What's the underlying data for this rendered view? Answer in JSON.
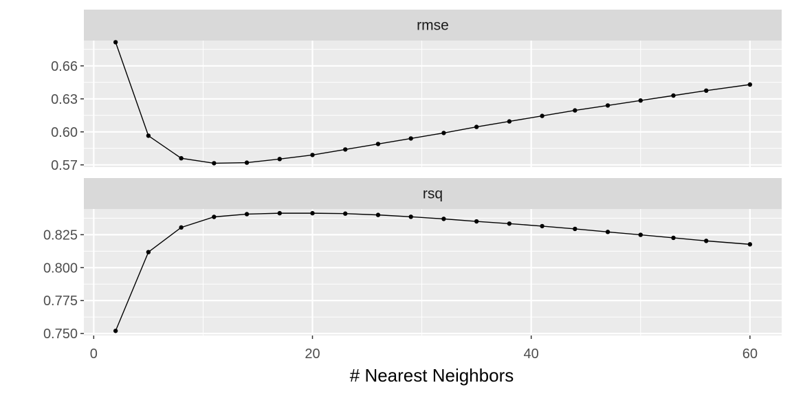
{
  "chart_data": {
    "type": "line",
    "xlabel": "# Nearest Neighbors",
    "ylabel": "",
    "x_ticks": [
      0,
      20,
      40,
      60
    ],
    "xlim": [
      -0.9,
      62.9
    ],
    "grid": true,
    "legend": "none",
    "colors": {
      "panel_bg": "#ebebeb",
      "grid": "#ffffff",
      "strip_bg": "#d9d9d9",
      "line": "#000000",
      "text": "#4d4d4d"
    },
    "x": [
      2,
      5,
      8,
      11,
      14,
      17,
      20,
      23,
      26,
      29,
      32,
      35,
      38,
      41,
      44,
      47,
      50,
      53,
      56,
      60
    ],
    "panels": [
      {
        "strip": "rmse",
        "ylim": [
          0.568,
          0.683
        ],
        "y_ticks": [
          0.57,
          0.6,
          0.63,
          0.66
        ],
        "y_tick_labels": [
          "0.57",
          "0.60",
          "0.63",
          "0.66"
        ],
        "values": [
          0.6815,
          0.5965,
          0.576,
          0.5715,
          0.572,
          0.5753,
          0.579,
          0.584,
          0.589,
          0.594,
          0.599,
          0.6045,
          0.6095,
          0.6145,
          0.6195,
          0.624,
          0.6285,
          0.633,
          0.6375,
          0.643
        ]
      },
      {
        "strip": "rsq",
        "ylim": [
          0.7485,
          0.8445
        ],
        "y_ticks": [
          0.75,
          0.775,
          0.8,
          0.825
        ],
        "y_tick_labels": [
          "0.750",
          "0.775",
          "0.800",
          "0.825"
        ],
        "values": [
          0.752,
          0.8118,
          0.8305,
          0.8385,
          0.8406,
          0.8413,
          0.8413,
          0.841,
          0.84,
          0.8386,
          0.837,
          0.8351,
          0.8334,
          0.8315,
          0.8294,
          0.8271,
          0.8249,
          0.8226,
          0.8203,
          0.8177
        ]
      }
    ]
  }
}
